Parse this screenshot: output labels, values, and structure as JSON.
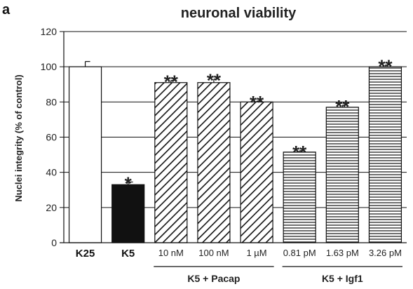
{
  "panel_letter": "a",
  "chart_data": {
    "type": "bar",
    "title": "neuronal viability",
    "ylabel": "Nuclei integrity (% of control)",
    "xlabel": "",
    "ylim": [
      0,
      120
    ],
    "yticks": [
      "0",
      "20",
      "40",
      "60",
      "80",
      "100",
      "120"
    ],
    "grid": "horizontal",
    "categories": [
      "K25",
      "K5",
      "10 nM",
      "100 nM",
      "1 µM",
      "0.81 pM",
      "1.63 pM",
      "3.26 pM"
    ],
    "values": [
      100,
      33,
      91,
      91,
      80,
      51.5,
      77,
      100
    ],
    "errors": [
      3,
      1.5,
      1.2,
      2,
      0.5,
      0.8,
      1.2,
      1
    ],
    "significance": [
      "",
      "*",
      "**",
      "**",
      "**",
      "**",
      "**",
      "**"
    ],
    "fills": [
      "white",
      "black",
      "diagonal",
      "diagonal",
      "diagonal",
      "horizontal",
      "horizontal",
      "horizontal"
    ],
    "groups": [
      {
        "label": "K5 + Pacap",
        "from": 2,
        "to": 4
      },
      {
        "label": "K5 + Igf1",
        "from": 5,
        "to": 7
      }
    ]
  }
}
